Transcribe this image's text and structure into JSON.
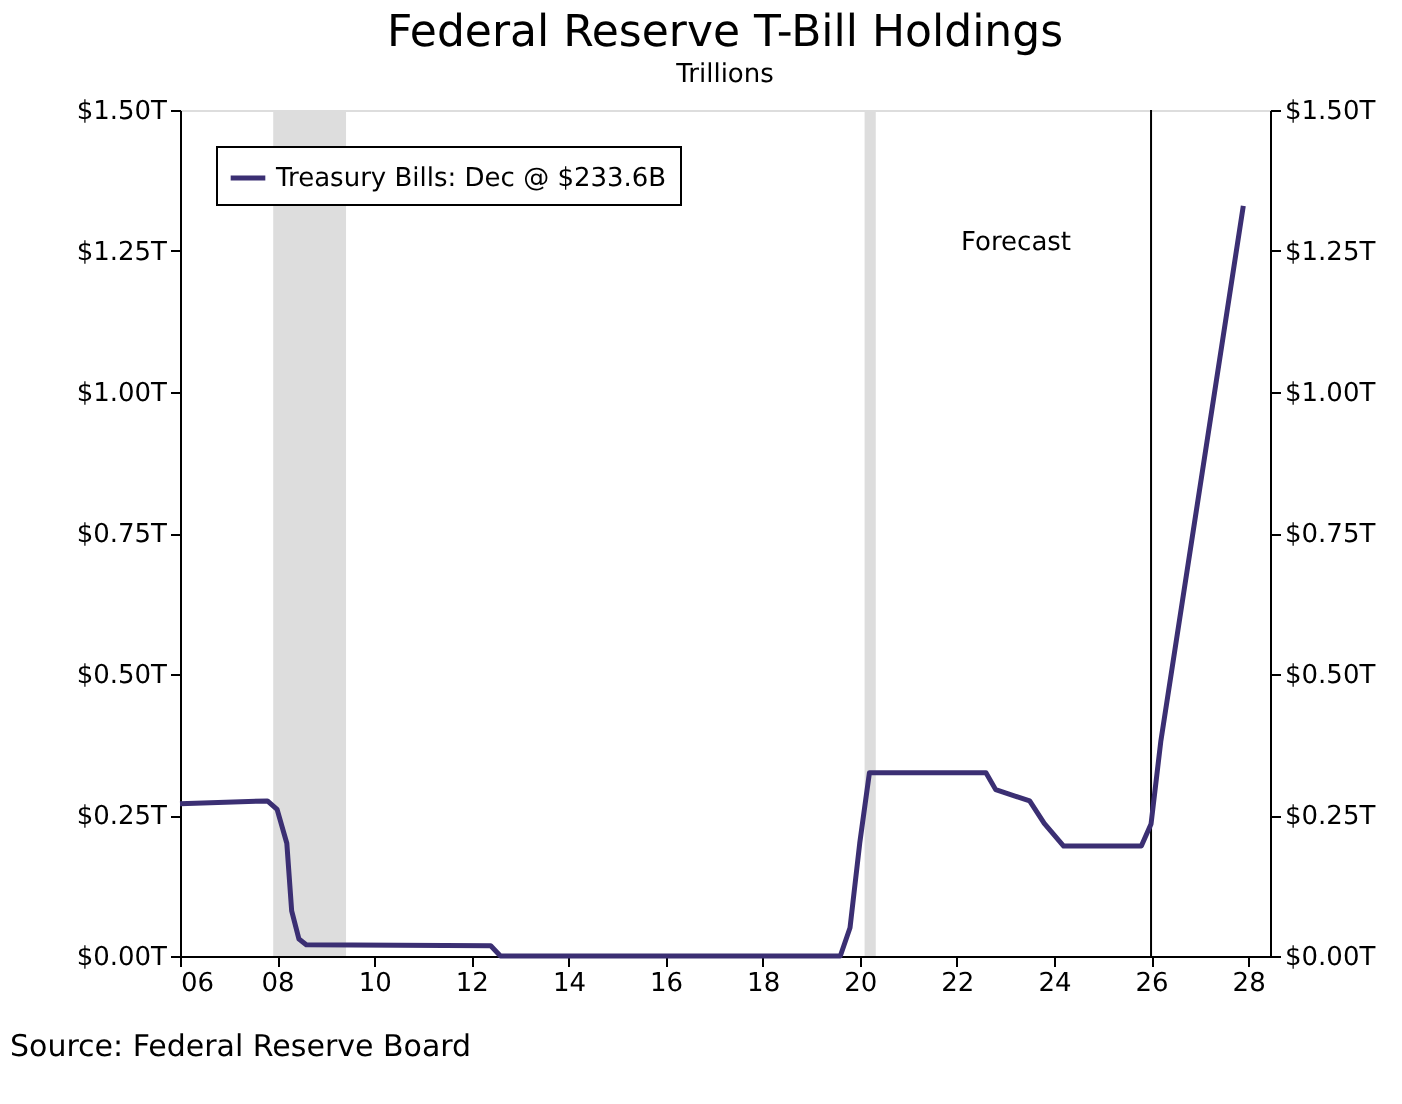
{
  "chart_data": {
    "type": "line",
    "title": "Federal Reserve T-Bill Holdings",
    "subtitle": "Trillions",
    "x": [
      2006,
      2007.8,
      2008.0,
      2008.2,
      2008.3,
      2008.45,
      2008.6,
      2012.4,
      2012.6,
      2019.6,
      2019.8,
      2020.0,
      2020.2,
      2022.6,
      2022.8,
      2023.5,
      2023.8,
      2024.2,
      2025.8,
      2026.0,
      2026.2,
      2027.9
    ],
    "series": [
      {
        "name": "Treasury Bills: Dec @ $233.6B",
        "color": "#3b2f73",
        "values": [
          0.27,
          0.275,
          0.26,
          0.2,
          0.08,
          0.03,
          0.02,
          0.018,
          0.0,
          0.0,
          0.05,
          0.2,
          0.325,
          0.325,
          0.295,
          0.275,
          0.235,
          0.195,
          0.195,
          0.234,
          0.38,
          1.33
        ]
      }
    ],
    "xlim": [
      2006,
      2028.45
    ],
    "xticks": [
      {
        "value": 2006,
        "label": "06"
      },
      {
        "value": 2008,
        "label": "08"
      },
      {
        "value": 2010,
        "label": "10"
      },
      {
        "value": 2012,
        "label": "12"
      },
      {
        "value": 2014,
        "label": "14"
      },
      {
        "value": 2016,
        "label": "16"
      },
      {
        "value": 2018,
        "label": "18"
      },
      {
        "value": 2020,
        "label": "20"
      },
      {
        "value": 2022,
        "label": "22"
      },
      {
        "value": 2024,
        "label": "24"
      },
      {
        "value": 2026,
        "label": "26"
      },
      {
        "value": 2028,
        "label": "28"
      }
    ],
    "ylim": [
      0,
      1.5
    ],
    "yticks": [
      {
        "value": 0,
        "label": "$0.00T"
      },
      {
        "value": 0.25,
        "label": "$0.25T"
      },
      {
        "value": 0.5,
        "label": "$0.50T"
      },
      {
        "value": 0.75,
        "label": "$0.75T"
      },
      {
        "value": 1.0,
        "label": "$1.00T"
      },
      {
        "value": 1.25,
        "label": "$1.25T"
      },
      {
        "value": 1.5,
        "label": "$1.50T"
      }
    ],
    "y2lim": [
      0,
      1.5
    ],
    "y2ticks": [
      {
        "value": 0,
        "label": "$0.00T"
      },
      {
        "value": 0.25,
        "label": "$0.25T"
      },
      {
        "value": 0.5,
        "label": "$0.50T"
      },
      {
        "value": 0.75,
        "label": "$0.75T"
      },
      {
        "value": 1.0,
        "label": "$1.00T"
      },
      {
        "value": 1.25,
        "label": "$1.25T"
      },
      {
        "value": 1.5,
        "label": "$1.50T"
      }
    ],
    "bands": [
      {
        "axis": "x",
        "from": 2007.92,
        "to": 2009.42,
        "color": "#dddddd"
      },
      {
        "axis": "x",
        "from": 2020.1,
        "to": 2020.33,
        "color": "#dddddd"
      }
    ],
    "ref_lines": [
      {
        "axis": "x",
        "value": 2026.0,
        "label": "Forecast",
        "color": "#000000"
      }
    ],
    "annotations": [
      "Source: Federal Reserve Board"
    ],
    "legend": "top left",
    "grid": false,
    "marker": "none",
    "line_style": "solid"
  }
}
